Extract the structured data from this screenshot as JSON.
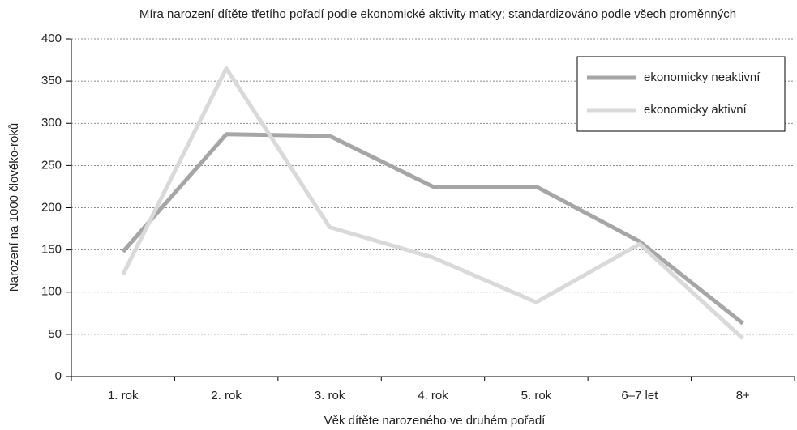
{
  "chart_data": {
    "type": "line",
    "title": "Míra narození dítěte třetího pořadí podle ekonomické aktivity matky; standardizováno podle všech proměnných",
    "x_label": "Věk dítěte narozeného ve druhém pořadí",
    "y_label": "Narození na 1000 člověko-roků",
    "categories": [
      "1. rok",
      "2. rok",
      "3. rok",
      "4. rok",
      "5. rok",
      "6–7 let",
      "8+"
    ],
    "series": [
      {
        "name": "ekonomicky neaktivní",
        "color": "#a6a6a6",
        "values": [
          148,
          287,
          285,
          225,
          225,
          160,
          63
        ]
      },
      {
        "name": "ekonomicky aktivní",
        "color": "#d9d9d9",
        "values": [
          121,
          365,
          177,
          141,
          88,
          157,
          45
        ]
      }
    ],
    "ylim": [
      0,
      400
    ],
    "yticks": [
      0,
      50,
      100,
      150,
      200,
      250,
      300,
      350,
      400
    ],
    "grid": true,
    "legend": "upper right"
  }
}
